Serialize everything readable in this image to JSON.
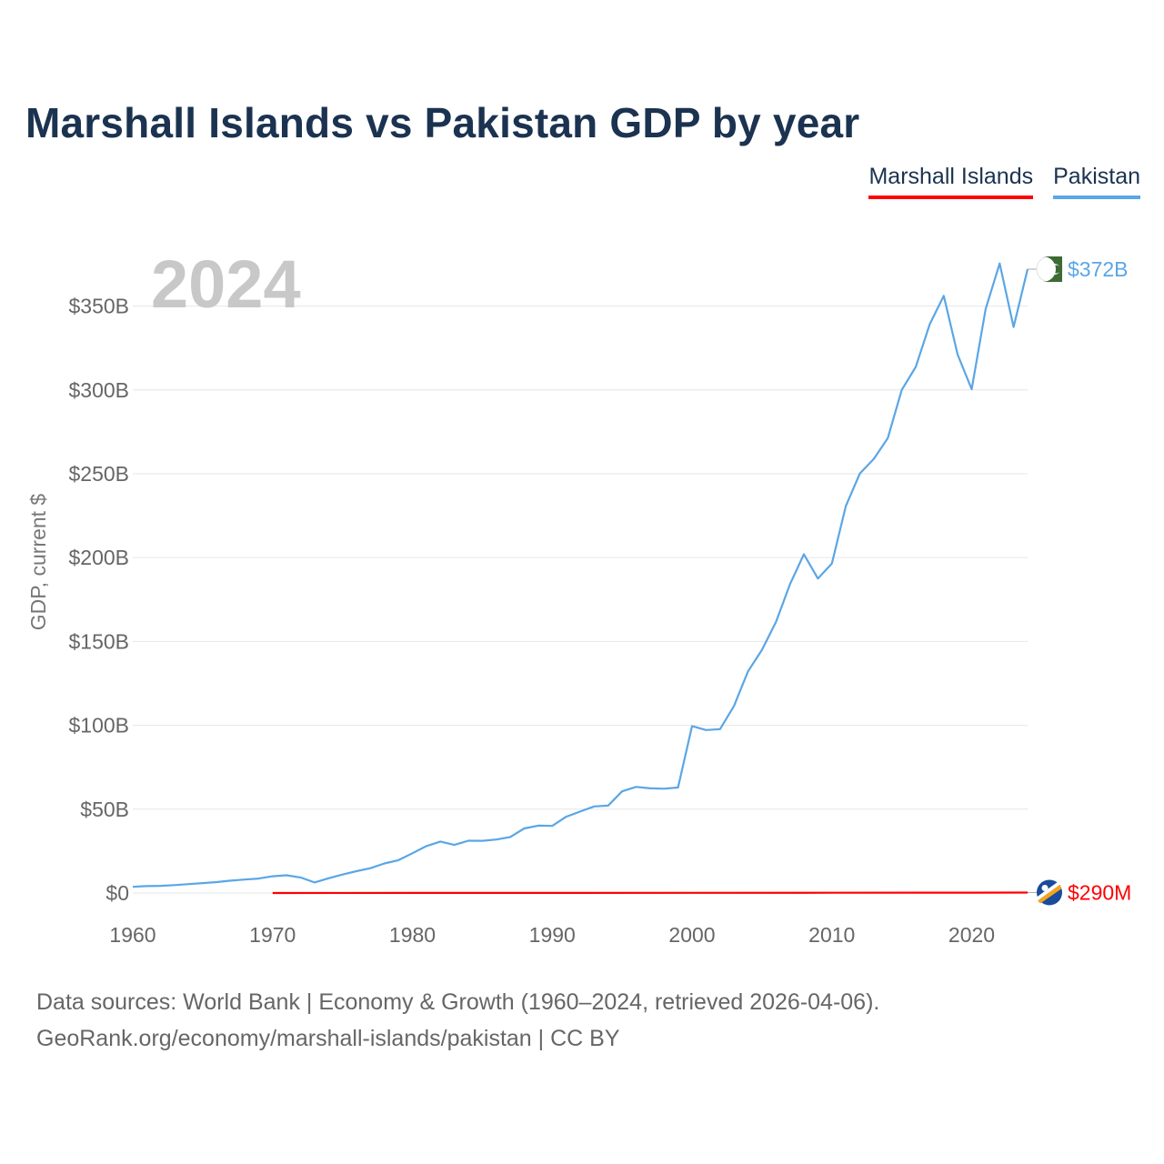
{
  "title": "Marshall Islands vs Pakistan GDP by year",
  "legend": [
    {
      "name": "Marshall Islands",
      "color": "#ff0000"
    },
    {
      "name": "Pakistan",
      "color": "#5aa6e6"
    }
  ],
  "year_watermark": "2024",
  "footer": {
    "line1": "Data sources: World Bank | Economy & Growth (1960–2024, retrieved 2026-04-06).",
    "line2": "GeoRank.org/economy/marshall-islands/pakistan | CC BY"
  },
  "chart_data": {
    "type": "line",
    "title": "Marshall Islands vs Pakistan GDP by year",
    "xlabel": "",
    "ylabel": "GDP, current $",
    "xlim": [
      1960,
      2024
    ],
    "ylim": [
      0,
      372
    ],
    "y_unit": "billions USD",
    "x_ticks": [
      1960,
      1970,
      1980,
      1990,
      2000,
      2010,
      2020
    ],
    "x_tick_labels": [
      "1960",
      "1970",
      "1980",
      "1990",
      "2000",
      "2010",
      "2020"
    ],
    "y_ticks": [
      0,
      50,
      100,
      150,
      200,
      250,
      300,
      350
    ],
    "y_tick_labels": [
      "$0",
      "$50B",
      "$100B",
      "$150B",
      "$200B",
      "$250B",
      "$300B",
      "$350B"
    ],
    "grid": true,
    "legend_position": "top-right",
    "series": [
      {
        "name": "Pakistan",
        "color": "#5aa6e6",
        "end_label": "$372B",
        "end_icon": "pakistan-flag-icon",
        "x": [
          1960,
          1961,
          1962,
          1963,
          1964,
          1965,
          1966,
          1967,
          1968,
          1969,
          1970,
          1971,
          1972,
          1973,
          1974,
          1975,
          1976,
          1977,
          1978,
          1979,
          1980,
          1981,
          1982,
          1983,
          1984,
          1985,
          1986,
          1987,
          1988,
          1989,
          1990,
          1991,
          1992,
          1993,
          1994,
          1995,
          1996,
          1997,
          1998,
          1999,
          2000,
          2001,
          2002,
          2003,
          2004,
          2005,
          2006,
          2007,
          2008,
          2009,
          2010,
          2011,
          2012,
          2013,
          2014,
          2015,
          2016,
          2017,
          2018,
          2019,
          2020,
          2021,
          2022,
          2023,
          2024
        ],
        "values": [
          3.7,
          4.1,
          4.3,
          4.7,
          5.3,
          5.9,
          6.5,
          7.4,
          8.0,
          8.6,
          10.0,
          10.6,
          9.3,
          6.3,
          8.8,
          11.0,
          13.0,
          14.8,
          17.6,
          19.6,
          23.7,
          28.0,
          30.7,
          28.7,
          31.2,
          31.1,
          31.9,
          33.4,
          38.5,
          40.2,
          40.0,
          45.5,
          48.6,
          51.6,
          52.1,
          60.6,
          63.3,
          62.4,
          62.2,
          62.9,
          99.5,
          97.2,
          97.7,
          111.5,
          132.1,
          145.0,
          161.6,
          184.0,
          202.0,
          187.5,
          196.5,
          230.7,
          250.1,
          258.9,
          271.3,
          300.0,
          313.7,
          339.2,
          356.1,
          321.0,
          300.4,
          348.3,
          375.4,
          337.5,
          372.0
        ]
      },
      {
        "name": "Marshall Islands",
        "color": "#ff0000",
        "end_label": "$290M",
        "end_icon": "marshall-islands-flag-icon",
        "x": [
          1970,
          1980,
          1990,
          2000,
          2010,
          2020,
          2024
        ],
        "values": [
          0.01,
          0.03,
          0.07,
          0.11,
          0.16,
          0.24,
          0.29
        ]
      }
    ]
  }
}
